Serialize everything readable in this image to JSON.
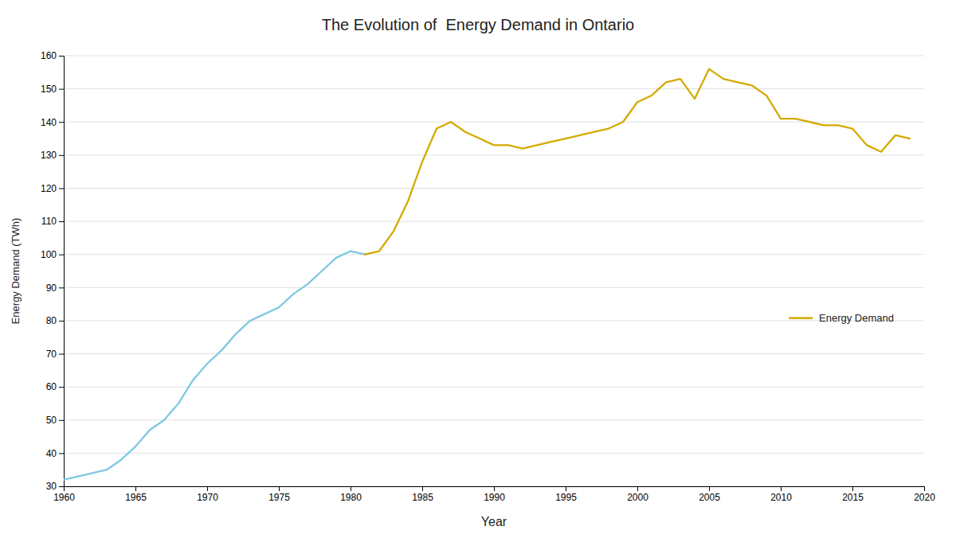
{
  "chart_data": {
    "type": "line",
    "title": "The Evolution of  Energy Demand in Ontario",
    "x_label": "Year",
    "y_label": "Energy Demand (TWh)",
    "x": [
      1960,
      1961,
      1962,
      1963,
      1964,
      1965,
      1966,
      1967,
      1968,
      1969,
      1970,
      1971,
      1972,
      1973,
      1974,
      1975,
      1976,
      1977,
      1978,
      1979,
      1980,
      1981,
      1982,
      1983,
      1984,
      1985,
      1986,
      1987,
      1988,
      1989,
      1990,
      1991,
      1992,
      1993,
      1994,
      1995,
      1996,
      1997,
      1998,
      1999,
      2000,
      2001,
      2002,
      2003,
      2004,
      2005,
      2006,
      2007,
      2008,
      2009,
      2010,
      2011,
      2012,
      2013,
      2014,
      2015,
      2016,
      2017,
      2018,
      2019
    ],
    "series": [
      {
        "color": "#7ec8e3",
        "values": [
          32,
          33,
          34,
          35,
          38,
          42,
          47,
          50,
          55,
          62,
          67,
          71,
          76,
          80,
          82,
          84,
          88,
          91,
          95,
          99,
          101,
          100,
          null,
          null,
          null,
          null,
          null,
          null,
          null,
          null,
          null,
          null,
          null,
          null,
          null,
          null,
          null,
          null,
          null,
          null,
          null,
          null,
          null,
          null,
          null,
          null,
          null,
          null,
          null,
          null,
          null,
          null,
          null,
          null,
          null,
          null,
          null,
          null,
          null,
          null
        ]
      },
      {
        "name": "Energy Demand",
        "color": "#d4aa00",
        "values": [
          null,
          null,
          null,
          null,
          null,
          null,
          null,
          null,
          null,
          null,
          null,
          null,
          null,
          null,
          null,
          null,
          null,
          null,
          null,
          null,
          null,
          100,
          101,
          107,
          116,
          128,
          138,
          140,
          137,
          135,
          133,
          133,
          132,
          133,
          134,
          135,
          136,
          137,
          138,
          140,
          146,
          148,
          152,
          153,
          147,
          156,
          153,
          152,
          151,
          148,
          141,
          141,
          140,
          139,
          139,
          138,
          133,
          131,
          136,
          135
        ]
      }
    ],
    "xlim": [
      1960,
      2020
    ],
    "xticks": [
      1960,
      1965,
      1970,
      1975,
      1980,
      1985,
      1990,
      1995,
      2000,
      2005,
      2010,
      2015,
      2020
    ],
    "ylim": [
      30,
      160
    ],
    "yticks": [
      30,
      40,
      50,
      60,
      70,
      80,
      90,
      100,
      110,
      120,
      130,
      140,
      150,
      160
    ],
    "grid": "y",
    "legend": "lower right"
  }
}
